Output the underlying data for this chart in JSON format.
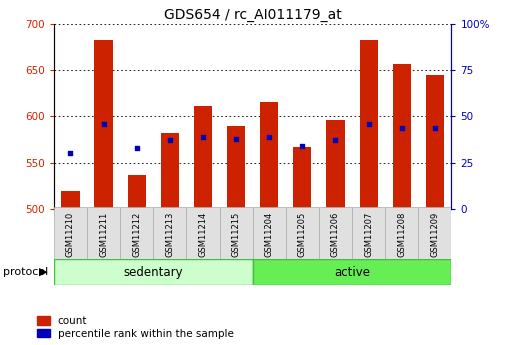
{
  "title": "GDS654 / rc_AI011179_at",
  "samples": [
    "GSM11210",
    "GSM11211",
    "GSM11212",
    "GSM11213",
    "GSM11214",
    "GSM11215",
    "GSM11204",
    "GSM11205",
    "GSM11206",
    "GSM11207",
    "GSM11208",
    "GSM11209"
  ],
  "group_labels": [
    "sedentary",
    "active"
  ],
  "sedentary_color": "#ccffcc",
  "active_color": "#66ee55",
  "group_border_color": "#44bb44",
  "bar_values": [
    519,
    683,
    537,
    582,
    611,
    590,
    616,
    567,
    596,
    683,
    657,
    645
  ],
  "percentile_values": [
    30,
    46,
    33,
    37,
    39,
    38,
    39,
    34,
    37,
    46,
    44,
    44
  ],
  "bar_color": "#cc2200",
  "percentile_color": "#0000bb",
  "ylim_left": [
    500,
    700
  ],
  "ylim_right": [
    0,
    100
  ],
  "yticks_left": [
    500,
    550,
    600,
    650,
    700
  ],
  "yticks_right": [
    0,
    25,
    50,
    75,
    100
  ],
  "tick_color_left": "#cc2200",
  "tick_color_right": "#0000bb",
  "legend_count_label": "count",
  "legend_percentile_label": "percentile rank within the sample",
  "protocol_label": "protocol",
  "bar_width": 0.55,
  "base_value": 500,
  "label_bg_color": "#e0e0e0",
  "label_border_color": "#aaaaaa"
}
